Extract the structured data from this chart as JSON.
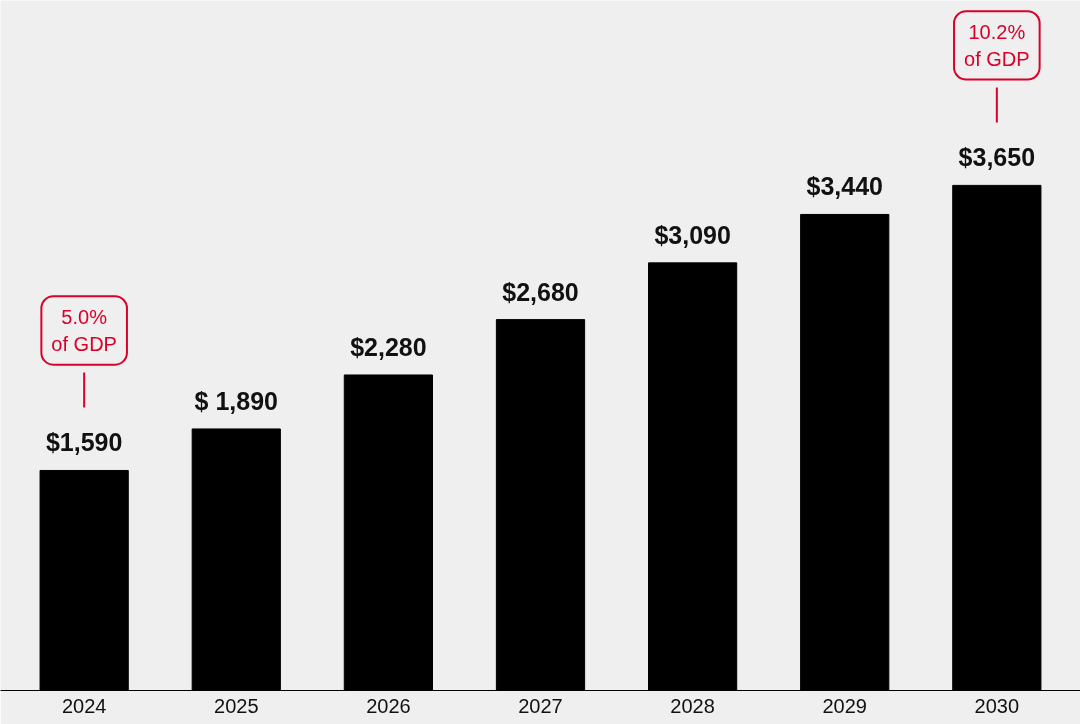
{
  "chart_data": {
    "type": "bar",
    "categories": [
      "2024",
      "2025",
      "2026",
      "2027",
      "2028",
      "2029",
      "2030"
    ],
    "values": [
      1590,
      1890,
      2280,
      2680,
      3090,
      3440,
      3650
    ],
    "value_labels": [
      "$1,590",
      "$ 1,890",
      "$2,280",
      "$2,680",
      "$3,090",
      "$3,440",
      "$3,650"
    ],
    "color": "#000000",
    "annotations": [
      "5.0%\nof GDP",
      "10.2%\nof GDP"
    ],
    "grid": false
  }
}
